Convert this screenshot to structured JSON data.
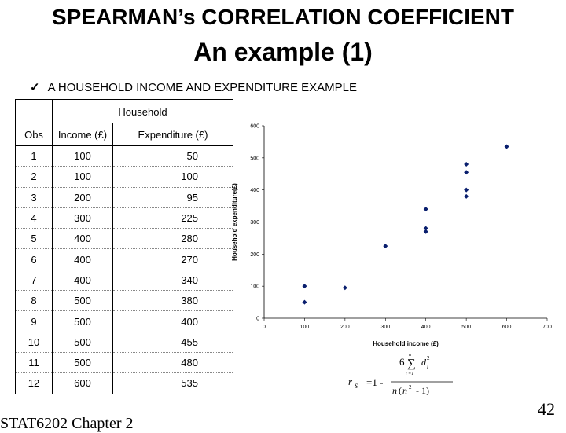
{
  "slide": {
    "title_line1": "SPEARMAN’s CORRELATION COEFFICIENT",
    "title_line2": "An example (1)",
    "bullet": "A HOUSEHOLD INCOME AND EXPENDITURE EXAMPLE",
    "footer_left": "STAT6202 Chapter 2",
    "page_number": "42"
  },
  "table": {
    "group_header": "Household",
    "columns": [
      "Obs",
      "Income (£)",
      "Expenditure (£)"
    ],
    "rows": [
      [
        "1",
        "100",
        "50"
      ],
      [
        "2",
        "100",
        "100"
      ],
      [
        "3",
        "200",
        "95"
      ],
      [
        "4",
        "300",
        "225"
      ],
      [
        "5",
        "400",
        "280"
      ],
      [
        "6",
        "400",
        "270"
      ],
      [
        "7",
        "400",
        "340"
      ],
      [
        "8",
        "500",
        "380"
      ],
      [
        "9",
        "500",
        "400"
      ],
      [
        "10",
        "500",
        "455"
      ],
      [
        "11",
        "500",
        "480"
      ],
      [
        "12",
        "600",
        "535"
      ]
    ]
  },
  "formula": {
    "lhs": "r",
    "lhs_sub": "S",
    "eq": "=1 -",
    "numer_coef": "6",
    "sum_upper": "n",
    "sum_lower": "i =1",
    "d": "d",
    "d_sub": "i",
    "d_sup": "2",
    "denom_n": "n",
    "denom_paren_open": "(",
    "denom_n2": "n",
    "denom_sup": "2",
    "denom_rest": " - 1)"
  },
  "chart_data": {
    "type": "scatter",
    "xlabel": "Household income (£)",
    "ylabel": "Household expenditure(£)",
    "xlim": [
      0,
      700
    ],
    "ylim": [
      0,
      600
    ],
    "x_ticks": [
      0,
      100,
      200,
      300,
      400,
      500,
      600,
      700
    ],
    "y_ticks": [
      0,
      100,
      200,
      300,
      400,
      500,
      600
    ],
    "grid": false,
    "marker_color": "#0a1f6e",
    "points": [
      {
        "x": 100,
        "y": 50
      },
      {
        "x": 100,
        "y": 100
      },
      {
        "x": 200,
        "y": 95
      },
      {
        "x": 300,
        "y": 225
      },
      {
        "x": 400,
        "y": 280
      },
      {
        "x": 400,
        "y": 270
      },
      {
        "x": 400,
        "y": 340
      },
      {
        "x": 500,
        "y": 380
      },
      {
        "x": 500,
        "y": 400
      },
      {
        "x": 500,
        "y": 455
      },
      {
        "x": 500,
        "y": 480
      },
      {
        "x": 600,
        "y": 535
      }
    ]
  }
}
